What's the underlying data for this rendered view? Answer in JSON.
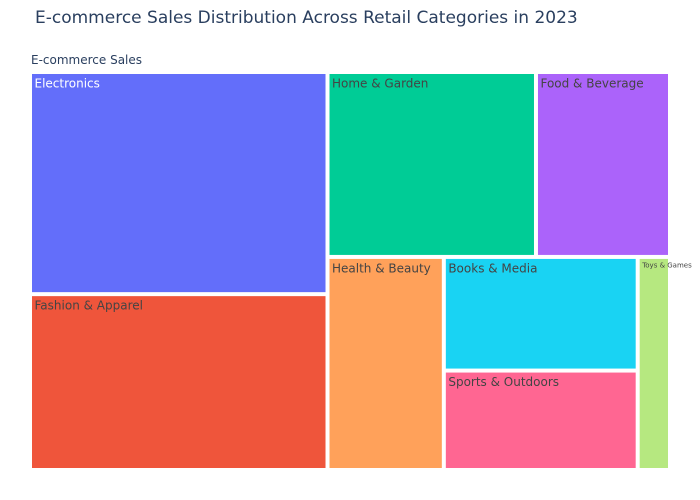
{
  "chart_data": {
    "type": "treemap",
    "title": "E-commerce Sales Distribution Across Retail Categories in 2023",
    "root": "E-commerce Sales",
    "items": [
      {
        "label": "Electronics",
        "value": 24,
        "color": "#636efa",
        "text_color": "#ffffff"
      },
      {
        "label": "Fashion & Apparel",
        "value": 19,
        "color": "#ef553b",
        "text_color": "#444444"
      },
      {
        "label": "Home & Garden",
        "value": 14,
        "color": "#00cc96",
        "text_color": "#444444"
      },
      {
        "label": "Food & Beverage",
        "value": 9,
        "color": "#ab63fa",
        "text_color": "#444444"
      },
      {
        "label": "Health & Beauty",
        "value": 9,
        "color": "#ffa15a",
        "text_color": "#444444"
      },
      {
        "label": "Books & Media",
        "value": 8,
        "color": "#19d3f3",
        "text_color": "#444444"
      },
      {
        "label": "Sports & Outdoors",
        "value": 7,
        "color": "#ff6692",
        "text_color": "#444444"
      },
      {
        "label": "Toys & Games",
        "value": 2.5,
        "color": "#b6e880",
        "text_color": "#444444"
      }
    ]
  }
}
